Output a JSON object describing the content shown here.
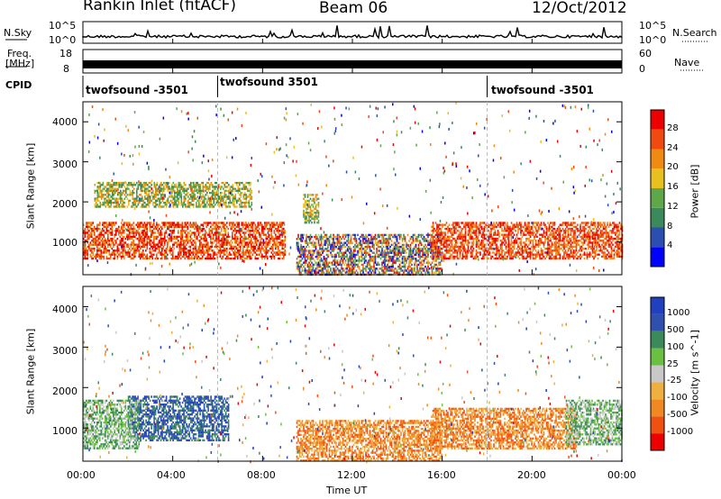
{
  "header": {
    "station": "Rankin Inlet (fitACF)",
    "beam": "Beam 06",
    "date": "12/Oct/2012"
  },
  "top_panels": {
    "nsky_label": "N.Sky",
    "nsearch_label": "N.Search",
    "nsky_ticks": [
      "10^5",
      "10^0"
    ],
    "freq_label_1": "Freq.",
    "freq_label_2": "[MHz]",
    "freq_ticks": [
      "18",
      "8"
    ],
    "nave_label": "Nave",
    "nave_ticks": [
      "60",
      "0"
    ],
    "cpid_label": "CPID",
    "cpid_segments": [
      {
        "label": "twofsound -3501",
        "start_h": 0,
        "end_h": 6
      },
      {
        "label": "twofsound 3501",
        "start_h": 6,
        "end_h": 18
      },
      {
        "label": "twofsound -3501",
        "start_h": 18,
        "end_h": 24
      }
    ]
  },
  "axes": {
    "ylabel": "Slant Range [km]",
    "xlabel": "Time UT",
    "yticks": [
      "1000",
      "2000",
      "3000",
      "4000"
    ],
    "xticks": [
      "00:00",
      "04:00",
      "08:00",
      "12:00",
      "16:00",
      "20:00",
      "00:00"
    ]
  },
  "chart_data": [
    {
      "type": "heatmap",
      "title": "",
      "xlabel": "Time UT",
      "ylabel": "Slant Range [km]",
      "xlim": [
        0,
        24
      ],
      "ylim": [
        180,
        4500
      ],
      "colorbar": {
        "label": "Power [dB]",
        "ticks": [
          4,
          8,
          12,
          16,
          20,
          24,
          28
        ],
        "tick_labels": [
          "4",
          "8",
          "12",
          "16",
          "20",
          "24",
          "28"
        ],
        "colors": [
          "#0000ff",
          "#2a4fb0",
          "#3b8a5c",
          "#5fa84a",
          "#e8c020",
          "#f08a10",
          "#f04a10",
          "#ee0000"
        ]
      },
      "scatter_regions": [
        {
          "t_start": 0,
          "t_end": 9,
          "r_start": 600,
          "r_end": 1500,
          "level": "high"
        },
        {
          "t_start": 0.5,
          "t_end": 7.5,
          "r_start": 1900,
          "r_end": 2500,
          "level": "medium"
        },
        {
          "t_start": 9.5,
          "t_end": 16,
          "r_start": 180,
          "r_end": 1200,
          "level": "mixed"
        },
        {
          "t_start": 15.5,
          "t_end": 24,
          "r_start": 600,
          "r_end": 1500,
          "level": "high"
        },
        {
          "t_start": 9.8,
          "t_end": 10.5,
          "r_start": 1500,
          "r_end": 2200,
          "level": "medium"
        }
      ]
    },
    {
      "type": "heatmap",
      "title": "",
      "xlabel": "Time UT",
      "ylabel": "Slant Range [km]",
      "xlim": [
        0,
        24
      ],
      "ylim": [
        180,
        4500
      ],
      "colorbar": {
        "label": "Velocity [m s^-1]",
        "ticks": [
          -1000,
          -500,
          -100,
          -25,
          25,
          100,
          500,
          1000
        ],
        "tick_labels": [
          "-1000",
          "-500",
          "-100",
          "-25",
          "25",
          "100",
          "500",
          "1000"
        ],
        "colors": [
          "#ee0000",
          "#f05010",
          "#f08a20",
          "#f0b040",
          "#c8c8c8",
          "#6ac040",
          "#3a8a5a",
          "#3050b0",
          "#2040c0"
        ]
      },
      "scatter_regions": [
        {
          "t_start": 2,
          "t_end": 6.5,
          "r_start": 700,
          "r_end": 1800,
          "level": "toward"
        },
        {
          "t_start": 0,
          "t_end": 2.5,
          "r_start": 500,
          "r_end": 1700,
          "level": "slow"
        },
        {
          "t_start": 9.5,
          "t_end": 16,
          "r_start": 180,
          "r_end": 1200,
          "level": "away"
        },
        {
          "t_start": 15.5,
          "t_end": 22,
          "r_start": 500,
          "r_end": 1500,
          "level": "away"
        },
        {
          "t_start": 21.5,
          "t_end": 24,
          "r_start": 600,
          "r_end": 1700,
          "level": "slow"
        }
      ]
    }
  ]
}
